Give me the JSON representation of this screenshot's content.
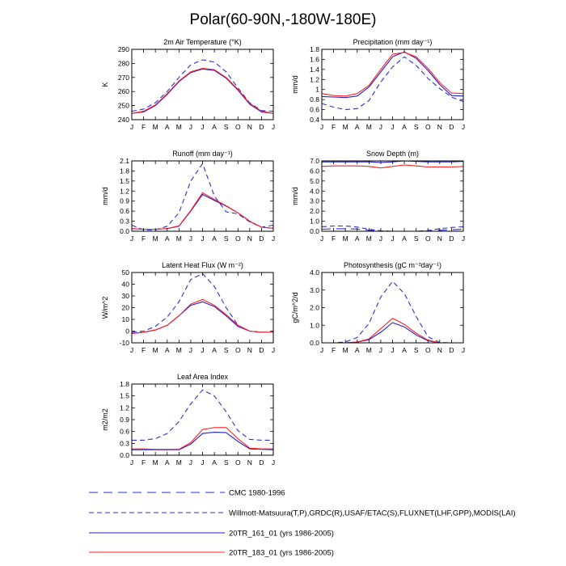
{
  "figure": {
    "title": "Polar(60-90N,-180W-180E)"
  },
  "months": [
    "J",
    "F",
    "M",
    "A",
    "M",
    "J",
    "J",
    "A",
    "S",
    "O",
    "N",
    "D",
    "J"
  ],
  "series_styles": [
    {
      "key": "cmc",
      "color": "#2f2fd0",
      "dash": "long-dash"
    },
    {
      "key": "obs",
      "color": "#2f2fd0",
      "dash": "dash"
    },
    {
      "key": "m161",
      "color": "#1f1fd8",
      "dash": "solid"
    },
    {
      "key": "m183",
      "color": "#ff2020",
      "dash": "solid"
    }
  ],
  "legend": {
    "entries": [
      {
        "label": "CMC 1980-1996",
        "style": "cmc"
      },
      {
        "label": "Willmott-Matsuura(T,P),GRDC(R),USAF/ETAC(S),FLUXNET(LHF,GPP),MODIS(LAI)",
        "style": "obs"
      },
      {
        "label": "20TR_161_01 (yrs 1986-2005)",
        "style": "m161"
      },
      {
        "label": "20TR_183_01 (yrs 1986-2005)",
        "style": "m183"
      }
    ]
  },
  "chart_data": [
    {
      "type": "line",
      "title": "2m Air Temperature (°K)",
      "ylabel": "K",
      "ylim": [
        240,
        290
      ],
      "yticks": [
        240,
        250,
        260,
        270,
        280,
        290
      ],
      "ytick_labels": [
        "240",
        "250",
        "260",
        "270",
        "280",
        "290"
      ],
      "x": [
        "J",
        "F",
        "M",
        "A",
        "M",
        "J",
        "J",
        "A",
        "S",
        "O",
        "N",
        "D",
        "J"
      ],
      "series": [
        {
          "name": "Willmott-Matsuura",
          "style": "obs",
          "values": [
            246,
            247.5,
            252,
            260,
            270,
            279,
            282.5,
            281,
            274,
            262.5,
            252,
            246.5,
            246
          ]
        },
        {
          "name": "20TR_161_01",
          "style": "m161",
          "values": [
            244.5,
            245.5,
            250,
            258,
            267,
            273.5,
            276,
            275,
            269.5,
            261,
            251,
            245.5,
            244.5
          ]
        },
        {
          "name": "20TR_183_01",
          "style": "m183",
          "values": [
            244.5,
            246,
            250.5,
            258.5,
            267.5,
            274,
            276.5,
            275.5,
            270,
            261.5,
            251.5,
            246,
            244.5
          ]
        }
      ]
    },
    {
      "type": "line",
      "title": "Precipitation (mm day⁻¹)",
      "ylabel": "mm/d",
      "ylim": [
        0.4,
        1.8
      ],
      "yticks": [
        0.4,
        0.6,
        0.8,
        1.0,
        1.2,
        1.4,
        1.6,
        1.8
      ],
      "ytick_labels": [
        "0.4",
        "0.6",
        "0.8",
        "1",
        "1.2",
        "1.4",
        "1.6",
        "1.8"
      ],
      "x": [
        "J",
        "F",
        "M",
        "A",
        "M",
        "J",
        "J",
        "A",
        "S",
        "O",
        "N",
        "D",
        "J"
      ],
      "series": [
        {
          "name": "Willmott-Matsuura",
          "style": "obs",
          "values": [
            0.72,
            0.65,
            0.6,
            0.62,
            0.78,
            1.15,
            1.45,
            1.65,
            1.48,
            1.22,
            1.02,
            0.85,
            0.76
          ]
        },
        {
          "name": "20TR_161_01",
          "style": "m161",
          "values": [
            0.86,
            0.85,
            0.84,
            0.87,
            1.05,
            1.35,
            1.65,
            1.75,
            1.62,
            1.38,
            1.1,
            0.88,
            0.87
          ]
        },
        {
          "name": "20TR_183_01",
          "style": "m183",
          "values": [
            0.92,
            0.88,
            0.87,
            0.92,
            1.08,
            1.4,
            1.7,
            1.74,
            1.65,
            1.42,
            1.14,
            0.93,
            0.92
          ]
        }
      ]
    },
    {
      "type": "line",
      "title": "Runoff (mm day⁻¹)",
      "ylabel": "mm/d",
      "ylim": [
        0.0,
        2.1
      ],
      "yticks": [
        0.0,
        0.3,
        0.6,
        0.9,
        1.2,
        1.5,
        1.8,
        2.1
      ],
      "ytick_labels": [
        "0.0",
        "0.3",
        "0.6",
        "0.9",
        "1.2",
        "1.5",
        "1.8",
        "2.1"
      ],
      "x": [
        "J",
        "F",
        "M",
        "A",
        "M",
        "J",
        "J",
        "A",
        "S",
        "O",
        "N",
        "D",
        "J"
      ],
      "series": [
        {
          "name": "GRDC",
          "style": "obs",
          "values": [
            0.18,
            0.04,
            0.04,
            0.15,
            0.55,
            1.5,
            2.02,
            1.05,
            0.58,
            0.52,
            0.28,
            0.12,
            0.18
          ]
        },
        {
          "name": "20TR_161_01",
          "style": "m161",
          "values": [
            0.08,
            0.06,
            0.06,
            0.08,
            0.15,
            0.6,
            1.1,
            0.92,
            0.75,
            0.55,
            0.3,
            0.12,
            0.09
          ]
        },
        {
          "name": "20TR_183_01",
          "style": "m183",
          "values": [
            0.08,
            0.06,
            0.06,
            0.08,
            0.16,
            0.62,
            1.15,
            0.95,
            0.76,
            0.55,
            0.3,
            0.12,
            0.09
          ]
        }
      ]
    },
    {
      "type": "line",
      "title": "Snow Depth (m)",
      "ylabel": "mm/d",
      "ylim": [
        0.0,
        7.0
      ],
      "yticks": [
        0.0,
        1.0,
        2.0,
        3.0,
        4.0,
        5.0,
        6.0,
        7.0
      ],
      "ytick_labels": [
        "0.0",
        "1.0",
        "2.0",
        "3.0",
        "4.0",
        "5.0",
        "6.0",
        "7.0"
      ],
      "x": [
        "J",
        "F",
        "M",
        "A",
        "M",
        "J",
        "J",
        "A",
        "S",
        "O",
        "N",
        "D",
        "J"
      ],
      "series": [
        {
          "name": "CMC 1980-1996",
          "style": "cmc",
          "values": [
            0.2,
            0.25,
            0.25,
            0.22,
            0.1,
            0.02,
            0.0,
            0.0,
            0.0,
            0.02,
            0.1,
            0.15,
            0.2
          ]
        },
        {
          "name": "USAF/ETAC",
          "style": "obs",
          "values": [
            0.45,
            0.52,
            0.52,
            0.42,
            0.2,
            0.05,
            0.0,
            0.0,
            0.0,
            0.08,
            0.25,
            0.38,
            0.45
          ]
        },
        {
          "name": "20TR_161_01",
          "style": "m161",
          "values": [
            6.9,
            6.9,
            6.9,
            6.9,
            6.9,
            6.85,
            6.9,
            7.0,
            6.95,
            6.9,
            6.9,
            6.9,
            6.95
          ]
        },
        {
          "name": "20TR_183_01",
          "style": "m183",
          "values": [
            6.45,
            6.5,
            6.5,
            6.5,
            6.45,
            6.3,
            6.45,
            6.6,
            6.5,
            6.4,
            6.4,
            6.4,
            6.45
          ]
        }
      ]
    },
    {
      "type": "line",
      "title": "Latent Heat Flux (W m⁻²)",
      "ylabel": "W/m^2",
      "ylim": [
        -10,
        50
      ],
      "yticks": [
        -10,
        0,
        10,
        20,
        30,
        40,
        50
      ],
      "ytick_labels": [
        "-10",
        "0",
        "10",
        "20",
        "30",
        "40",
        "50"
      ],
      "x": [
        "J",
        "F",
        "M",
        "A",
        "M",
        "J",
        "J",
        "A",
        "S",
        "O",
        "N",
        "D",
        "J"
      ],
      "series": [
        {
          "name": "FLUXNET",
          "style": "obs",
          "values": [
            -1,
            0,
            4,
            12,
            25,
            44,
            49,
            38,
            20,
            5,
            0,
            -1,
            -1
          ]
        },
        {
          "name": "20TR_161_01",
          "style": "m161",
          "values": [
            -2,
            -1,
            1,
            5,
            13,
            22,
            25,
            21,
            13,
            4,
            0,
            -1,
            -1
          ]
        },
        {
          "name": "20TR_183_01",
          "style": "m183",
          "values": [
            -2,
            -1,
            1,
            5,
            13,
            23,
            27,
            22,
            14,
            5,
            0,
            -1,
            -1
          ]
        }
      ]
    },
    {
      "type": "line",
      "title": "Photosynthesis (gC m⁻²day⁻¹)",
      "ylabel": "gC/m^2/d",
      "ylim": [
        0.0,
        4.0
      ],
      "yticks": [
        0.0,
        1.0,
        2.0,
        3.0,
        4.0
      ],
      "ytick_labels": [
        "0.0",
        "1.0",
        "2.0",
        "3.0",
        "4.0"
      ],
      "x": [
        "J",
        "F",
        "M",
        "A",
        "M",
        "J",
        "J",
        "A",
        "S",
        "O",
        "N",
        "D",
        "J"
      ],
      "series": [
        {
          "name": "FLUXNET",
          "style": "obs",
          "values": [
            0.0,
            0.0,
            0.05,
            0.3,
            1.1,
            2.6,
            3.5,
            2.8,
            1.5,
            0.35,
            0.02,
            0.0,
            0.0
          ]
        },
        {
          "name": "20TR_161_01",
          "style": "m161",
          "values": [
            0.0,
            0.0,
            0.0,
            0.04,
            0.18,
            0.6,
            1.15,
            0.9,
            0.45,
            0.12,
            0.0,
            0.0,
            0.0
          ]
        },
        {
          "name": "20TR_183_01",
          "style": "m183",
          "values": [
            0.0,
            0.0,
            0.0,
            0.05,
            0.22,
            0.8,
            1.4,
            1.05,
            0.55,
            0.15,
            0.0,
            0.0,
            0.0
          ]
        }
      ]
    },
    {
      "type": "line",
      "title": "Leaf Area Index",
      "ylabel": "m2/m2",
      "ylim": [
        0.0,
        1.8
      ],
      "yticks": [
        0.0,
        0.3,
        0.6,
        0.9,
        1.2,
        1.5,
        1.8
      ],
      "ytick_labels": [
        "0.0",
        "0.3",
        "0.6",
        "0.9",
        "1.2",
        "1.5",
        "1.8"
      ],
      "x": [
        "J",
        "F",
        "M",
        "A",
        "M",
        "J",
        "J",
        "A",
        "S",
        "O",
        "N",
        "D",
        "J"
      ],
      "series": [
        {
          "name": "MODIS",
          "style": "obs",
          "values": [
            0.38,
            0.38,
            0.42,
            0.55,
            0.85,
            1.3,
            1.65,
            1.5,
            1.1,
            0.62,
            0.4,
            0.38,
            0.38
          ]
        },
        {
          "name": "20TR_161_01",
          "style": "m161",
          "values": [
            0.14,
            0.14,
            0.14,
            0.14,
            0.14,
            0.28,
            0.55,
            0.58,
            0.57,
            0.35,
            0.16,
            0.15,
            0.14
          ]
        },
        {
          "name": "20TR_183_01",
          "style": "m183",
          "values": [
            0.16,
            0.16,
            0.15,
            0.15,
            0.15,
            0.32,
            0.65,
            0.7,
            0.7,
            0.42,
            0.18,
            0.16,
            0.16
          ]
        }
      ]
    }
  ]
}
